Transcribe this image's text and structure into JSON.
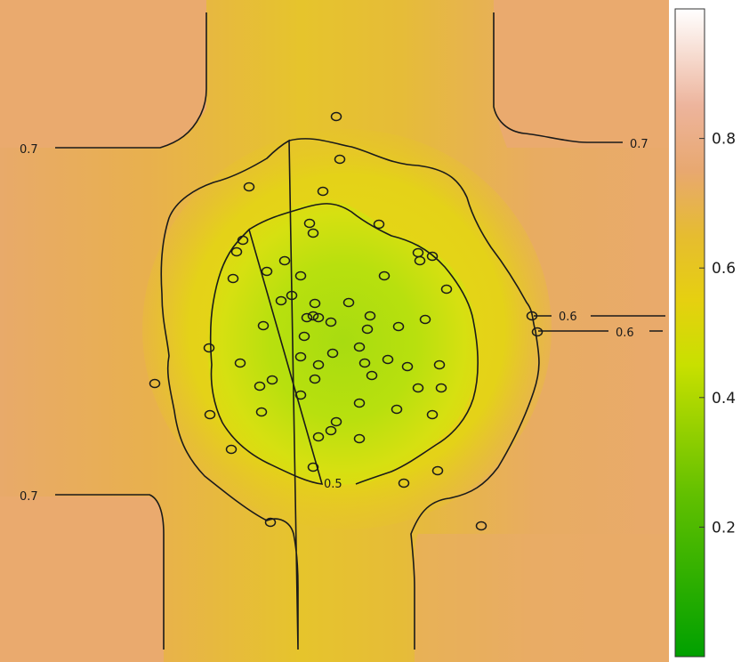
{
  "chart_data": {
    "type": "heatmap",
    "title": "",
    "xlabel": "",
    "ylabel": "",
    "colorbar": {
      "range": [
        0,
        1
      ],
      "ticks": [
        0.2,
        0.4,
        0.6,
        0.8
      ],
      "tick_labels": [
        "0.2",
        "0.4",
        "0.6",
        "0.8"
      ],
      "colors": [
        "#00a000",
        "#c8e000",
        "#e6c21a",
        "#e8a36e",
        "#ffffff"
      ]
    },
    "field_colors": {
      "low": "#a8dc10",
      "mid": "#e2dc12",
      "edge": "#e8bc30",
      "high": "#eaaa6e"
    },
    "contour_levels": [
      0.5,
      0.6,
      0.7
    ],
    "contour_labels": [
      {
        "text": "0.7",
        "level": 0.7
      },
      {
        "text": "0.7",
        "level": 0.7
      },
      {
        "text": "0.7",
        "level": 0.7
      },
      {
        "text": "0.6",
        "level": 0.6
      },
      {
        "text": "0.6",
        "level": 0.6
      },
      {
        "text": "0.5",
        "level": 0.5
      }
    ],
    "points": [
      [
        378,
        131
      ],
      [
        382,
        179
      ],
      [
        280,
        210
      ],
      [
        363,
        215
      ],
      [
        348,
        251
      ],
      [
        426,
        252
      ],
      [
        352,
        262
      ],
      [
        273,
        270
      ],
      [
        266,
        283
      ],
      [
        470,
        284
      ],
      [
        486,
        288
      ],
      [
        472,
        293
      ],
      [
        320,
        293
      ],
      [
        300,
        305
      ],
      [
        338,
        310
      ],
      [
        432,
        310
      ],
      [
        262,
        313
      ],
      [
        502,
        325
      ],
      [
        328,
        332
      ],
      [
        316,
        338
      ],
      [
        392,
        340
      ],
      [
        354,
        341
      ],
      [
        352,
        355
      ],
      [
        598,
        355
      ],
      [
        345,
        357
      ],
      [
        358,
        357
      ],
      [
        416,
        355
      ],
      [
        372,
        362
      ],
      [
        296,
        366
      ],
      [
        413,
        370
      ],
      [
        448,
        367
      ],
      [
        478,
        359
      ],
      [
        342,
        378
      ],
      [
        604,
        373
      ],
      [
        235,
        391
      ],
      [
        404,
        390
      ],
      [
        374,
        397
      ],
      [
        338,
        401
      ],
      [
        270,
        408
      ],
      [
        410,
        408
      ],
      [
        436,
        404
      ],
      [
        458,
        412
      ],
      [
        494,
        410
      ],
      [
        358,
        410
      ],
      [
        418,
        422
      ],
      [
        306,
        427
      ],
      [
        292,
        434
      ],
      [
        354,
        426
      ],
      [
        174,
        431
      ],
      [
        496,
        436
      ],
      [
        338,
        444
      ],
      [
        470,
        436
      ],
      [
        404,
        453
      ],
      [
        294,
        463
      ],
      [
        446,
        460
      ],
      [
        236,
        466
      ],
      [
        486,
        466
      ],
      [
        378,
        474
      ],
      [
        372,
        484
      ],
      [
        358,
        491
      ],
      [
        404,
        493
      ],
      [
        260,
        505
      ],
      [
        352,
        525
      ],
      [
        492,
        529
      ],
      [
        454,
        543
      ],
      [
        304,
        587
      ],
      [
        541,
        591
      ]
    ]
  }
}
